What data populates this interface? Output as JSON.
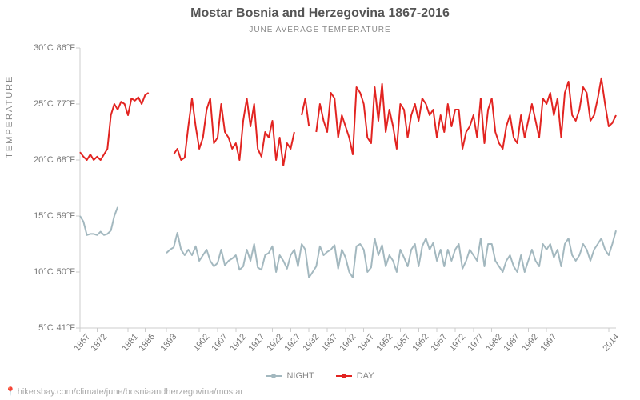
{
  "title": "Mostar Bosnia and Herzegovina 1867-2016",
  "subtitle": "JUNE AVERAGE TEMPERATURE",
  "ylabel": "TEMPERATURE",
  "attribution": "hikersbay.com/climate/june/bosniaandherzegovina/mostar",
  "title_fontsize": 16,
  "subtitle_fontsize": 10,
  "tick_fontsize": 11,
  "background_color": "#ffffff",
  "grid_color": "#cccccc",
  "tick_text_color": "#777777",
  "label_text_color": "#888888",
  "ylim_c": [
    5,
    30
  ],
  "yticks": [
    {
      "c": "5°C",
      "f": "41°F",
      "val": 5
    },
    {
      "c": "10°C",
      "f": "50°F",
      "val": 10
    },
    {
      "c": "15°C",
      "f": "59°F",
      "val": 15
    },
    {
      "c": "20°C",
      "f": "68°F",
      "val": 20
    },
    {
      "c": "25°C",
      "f": "77°F",
      "val": 25
    },
    {
      "c": "30°C",
      "f": "86°F",
      "val": 30
    }
  ],
  "xticks": [
    "1867",
    "1872",
    "1881",
    "1886",
    "1893",
    "1902",
    "1907",
    "1912",
    "1917",
    "1922",
    "1927",
    "1932",
    "1937",
    "1942",
    "1947",
    "1952",
    "1957",
    "1962",
    "1967",
    "1972",
    "1977",
    "1982",
    "1987",
    "1992",
    "1997",
    "2014"
  ],
  "xlim": [
    1867,
    2016
  ],
  "xtick_irregular_left": [
    1867,
    1872,
    1881,
    1886
  ],
  "xtick_gap_after": 1886,
  "legend": {
    "items": [
      {
        "label": "NIGHT",
        "color": "#a3b8bf",
        "key": "night"
      },
      {
        "label": "DAY",
        "color": "#e22421",
        "key": "day"
      }
    ]
  },
  "series": {
    "night": {
      "color": "#a3b8bf",
      "line_width": 2,
      "marker": "circle",
      "marker_size": 3,
      "segments": [
        [
          [
            1867,
            15.0
          ],
          [
            1868,
            14.5
          ],
          [
            1869,
            13.3
          ],
          [
            1870,
            13.4
          ],
          [
            1871,
            13.4
          ],
          [
            1872,
            13.3
          ],
          [
            1873,
            13.6
          ],
          [
            1874,
            13.3
          ],
          [
            1875,
            13.4
          ],
          [
            1876,
            13.7
          ],
          [
            1877,
            15.0
          ],
          [
            1878,
            15.8
          ]
        ],
        [
          [
            1893,
            11.7
          ],
          [
            1894,
            12.0
          ],
          [
            1895,
            12.2
          ],
          [
            1896,
            13.5
          ],
          [
            1897,
            12.0
          ],
          [
            1898,
            11.5
          ],
          [
            1899,
            12.0
          ],
          [
            1900,
            11.5
          ],
          [
            1901,
            12.3
          ],
          [
            1902,
            11.0
          ],
          [
            1903,
            11.5
          ],
          [
            1904,
            12.0
          ],
          [
            1905,
            11.0
          ],
          [
            1906,
            10.5
          ],
          [
            1907,
            10.8
          ],
          [
            1908,
            12.0
          ],
          [
            1909,
            10.6
          ],
          [
            1910,
            11.0
          ],
          [
            1911,
            11.2
          ],
          [
            1912,
            11.5
          ],
          [
            1913,
            10.2
          ],
          [
            1914,
            10.5
          ],
          [
            1915,
            12.0
          ],
          [
            1916,
            11.0
          ],
          [
            1917,
            12.5
          ],
          [
            1918,
            10.4
          ],
          [
            1919,
            10.2
          ],
          [
            1920,
            11.5
          ],
          [
            1921,
            11.7
          ],
          [
            1922,
            12.3
          ],
          [
            1923,
            10.0
          ],
          [
            1924,
            11.5
          ],
          [
            1925,
            11.0
          ],
          [
            1926,
            10.3
          ],
          [
            1927,
            11.5
          ],
          [
            1928,
            12.0
          ],
          [
            1929,
            10.5
          ],
          [
            1930,
            12.5
          ],
          [
            1931,
            12.0
          ],
          [
            1932,
            9.5
          ],
          [
            1933,
            10.0
          ],
          [
            1934,
            10.5
          ],
          [
            1935,
            12.3
          ],
          [
            1936,
            11.5
          ],
          [
            1937,
            11.8
          ],
          [
            1938,
            12.0
          ],
          [
            1939,
            12.4
          ],
          [
            1940,
            10.3
          ],
          [
            1941,
            12.0
          ],
          [
            1942,
            11.3
          ],
          [
            1943,
            10.0
          ],
          [
            1944,
            9.5
          ],
          [
            1945,
            12.3
          ],
          [
            1946,
            12.5
          ],
          [
            1947,
            12.0
          ],
          [
            1948,
            10.0
          ],
          [
            1949,
            10.4
          ],
          [
            1950,
            13.0
          ],
          [
            1951,
            11.5
          ],
          [
            1952,
            12.4
          ],
          [
            1953,
            10.5
          ],
          [
            1954,
            11.5
          ],
          [
            1955,
            11.0
          ],
          [
            1956,
            10.0
          ],
          [
            1957,
            12.0
          ],
          [
            1958,
            11.3
          ],
          [
            1959,
            10.5
          ],
          [
            1960,
            12.0
          ],
          [
            1961,
            12.5
          ],
          [
            1962,
            10.5
          ],
          [
            1963,
            12.3
          ],
          [
            1964,
            13.0
          ],
          [
            1965,
            12.0
          ],
          [
            1966,
            12.6
          ],
          [
            1967,
            11.0
          ],
          [
            1968,
            12.0
          ],
          [
            1969,
            10.5
          ],
          [
            1970,
            12.0
          ],
          [
            1971,
            11.0
          ],
          [
            1972,
            12.0
          ],
          [
            1973,
            12.5
          ],
          [
            1974,
            10.3
          ],
          [
            1975,
            11.0
          ],
          [
            1976,
            12.0
          ],
          [
            1977,
            11.5
          ],
          [
            1978,
            11.0
          ],
          [
            1979,
            13.0
          ],
          [
            1980,
            10.5
          ],
          [
            1981,
            12.5
          ],
          [
            1982,
            12.5
          ],
          [
            1983,
            11.0
          ],
          [
            1984,
            10.5
          ],
          [
            1985,
            10.0
          ],
          [
            1986,
            11.0
          ],
          [
            1987,
            11.5
          ],
          [
            1988,
            10.5
          ],
          [
            1989,
            10.0
          ],
          [
            1990,
            11.5
          ],
          [
            1991,
            10.0
          ],
          [
            1992,
            11.0
          ],
          [
            1993,
            12.0
          ],
          [
            1994,
            11.0
          ],
          [
            1995,
            10.5
          ],
          [
            1996,
            12.5
          ],
          [
            1997,
            12.0
          ],
          [
            1998,
            12.5
          ],
          [
            1999,
            11.3
          ],
          [
            2000,
            12.0
          ],
          [
            2001,
            10.5
          ],
          [
            2002,
            12.5
          ],
          [
            2003,
            13.0
          ],
          [
            2004,
            11.5
          ],
          [
            2005,
            11.0
          ],
          [
            2006,
            11.5
          ],
          [
            2007,
            12.5
          ],
          [
            2008,
            12.0
          ],
          [
            2009,
            11.0
          ],
          [
            2010,
            12.0
          ],
          [
            2011,
            12.5
          ],
          [
            2012,
            13.0
          ],
          [
            2013,
            12.0
          ],
          [
            2014,
            11.5
          ],
          [
            2015,
            12.5
          ],
          [
            2016,
            13.7
          ]
        ]
      ]
    },
    "day": {
      "color": "#e22421",
      "line_width": 2,
      "marker": "circle",
      "marker_size": 3,
      "segments": [
        [
          [
            1867,
            20.7
          ],
          [
            1868,
            20.3
          ],
          [
            1869,
            20.0
          ],
          [
            1870,
            20.5
          ],
          [
            1871,
            20.0
          ],
          [
            1872,
            20.3
          ],
          [
            1873,
            20.0
          ],
          [
            1874,
            20.5
          ],
          [
            1875,
            21.0
          ],
          [
            1876,
            24.0
          ],
          [
            1877,
            25.0
          ],
          [
            1878,
            24.5
          ],
          [
            1879,
            25.2
          ],
          [
            1880,
            25.0
          ],
          [
            1881,
            24.0
          ],
          [
            1882,
            25.5
          ],
          [
            1883,
            25.3
          ],
          [
            1884,
            25.6
          ],
          [
            1885,
            25.0
          ],
          [
            1886,
            25.8
          ],
          [
            1887,
            26.0
          ]
        ],
        [
          [
            1895,
            20.5
          ],
          [
            1896,
            21.0
          ],
          [
            1897,
            20.0
          ],
          [
            1898,
            20.2
          ],
          [
            1899,
            23.0
          ],
          [
            1900,
            25.5
          ],
          [
            1901,
            23.0
          ],
          [
            1902,
            21.0
          ],
          [
            1903,
            22.0
          ],
          [
            1904,
            24.5
          ],
          [
            1905,
            25.5
          ],
          [
            1906,
            21.5
          ],
          [
            1907,
            22.0
          ],
          [
            1908,
            25.0
          ],
          [
            1909,
            22.5
          ],
          [
            1910,
            22.0
          ],
          [
            1911,
            21.0
          ],
          [
            1912,
            21.5
          ],
          [
            1913,
            20.0
          ],
          [
            1914,
            23.5
          ],
          [
            1915,
            25.5
          ],
          [
            1916,
            23.0
          ],
          [
            1917,
            25.0
          ],
          [
            1918,
            21.0
          ],
          [
            1919,
            20.3
          ],
          [
            1920,
            22.5
          ],
          [
            1921,
            22.0
          ],
          [
            1922,
            23.5
          ],
          [
            1923,
            20.0
          ],
          [
            1924,
            22.0
          ],
          [
            1925,
            19.5
          ],
          [
            1926,
            21.5
          ],
          [
            1927,
            21.0
          ],
          [
            1928,
            22.5
          ]
        ],
        [
          [
            1930,
            24.0
          ],
          [
            1931,
            25.5
          ],
          [
            1932,
            23.0
          ]
        ],
        [
          [
            1934,
            22.5
          ],
          [
            1935,
            25.0
          ],
          [
            1936,
            23.5
          ],
          [
            1937,
            22.5
          ],
          [
            1938,
            26.0
          ],
          [
            1939,
            25.5
          ],
          [
            1940,
            22.0
          ],
          [
            1941,
            24.0
          ],
          [
            1942,
            23.0
          ],
          [
            1943,
            22.0
          ],
          [
            1944,
            20.5
          ],
          [
            1945,
            26.5
          ],
          [
            1946,
            26.0
          ],
          [
            1947,
            25.0
          ],
          [
            1948,
            22.0
          ],
          [
            1949,
            21.5
          ],
          [
            1950,
            26.5
          ],
          [
            1951,
            23.5
          ],
          [
            1952,
            26.8
          ],
          [
            1953,
            22.5
          ],
          [
            1954,
            24.5
          ],
          [
            1955,
            23.0
          ],
          [
            1956,
            21.0
          ],
          [
            1957,
            25.0
          ],
          [
            1958,
            24.5
          ],
          [
            1959,
            22.0
          ],
          [
            1960,
            24.0
          ],
          [
            1961,
            25.0
          ],
          [
            1962,
            23.5
          ],
          [
            1963,
            25.5
          ],
          [
            1964,
            25.0
          ],
          [
            1965,
            24.0
          ],
          [
            1966,
            24.5
          ],
          [
            1967,
            22.0
          ],
          [
            1968,
            24.0
          ],
          [
            1969,
            22.5
          ],
          [
            1970,
            25.0
          ],
          [
            1971,
            23.0
          ],
          [
            1972,
            24.5
          ],
          [
            1973,
            24.5
          ],
          [
            1974,
            21.0
          ],
          [
            1975,
            22.5
          ],
          [
            1976,
            23.0
          ],
          [
            1977,
            24.0
          ],
          [
            1978,
            22.0
          ],
          [
            1979,
            25.5
          ],
          [
            1980,
            21.5
          ],
          [
            1981,
            24.5
          ],
          [
            1982,
            25.5
          ],
          [
            1983,
            22.5
          ],
          [
            1984,
            21.5
          ],
          [
            1985,
            21.0
          ],
          [
            1986,
            23.0
          ],
          [
            1987,
            24.0
          ],
          [
            1988,
            22.0
          ],
          [
            1989,
            21.5
          ],
          [
            1990,
            24.0
          ],
          [
            1991,
            22.0
          ],
          [
            1992,
            23.5
          ],
          [
            1993,
            25.0
          ],
          [
            1994,
            23.5
          ],
          [
            1995,
            22.0
          ],
          [
            1996,
            25.5
          ],
          [
            1997,
            25.0
          ],
          [
            1998,
            26.0
          ],
          [
            1999,
            24.0
          ],
          [
            2000,
            25.5
          ],
          [
            2001,
            22.0
          ],
          [
            2002,
            26.0
          ],
          [
            2003,
            27.0
          ],
          [
            2004,
            24.0
          ],
          [
            2005,
            23.5
          ],
          [
            2006,
            24.5
          ],
          [
            2007,
            26.5
          ],
          [
            2008,
            26.0
          ],
          [
            2009,
            23.5
          ],
          [
            2010,
            24.0
          ],
          [
            2011,
            25.5
          ],
          [
            2012,
            27.3
          ],
          [
            2013,
            25.0
          ],
          [
            2014,
            23.0
          ],
          [
            2015,
            23.3
          ],
          [
            2016,
            24.0
          ]
        ]
      ]
    }
  }
}
